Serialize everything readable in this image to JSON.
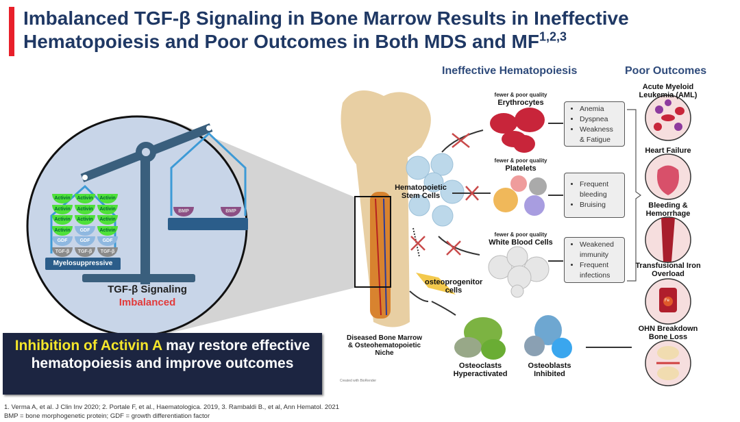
{
  "title": {
    "line1": "Imbalanced TGF-β Signaling in Bone Marrow Results in Ineffective",
    "line2": "Hematopoiesis and Poor Outcomes in Both MDS and MF",
    "superscript": "1,2,3"
  },
  "headings": {
    "hematopoiesis": "Ineffective Hematopoiesis",
    "outcomes": "Poor Outcomes"
  },
  "scale": {
    "left_stack": [
      [
        "Activin",
        "Activin",
        "Activin"
      ],
      [
        "Activin",
        "Activin",
        "Activin"
      ],
      [
        "Activin",
        "Activin",
        "Activin"
      ],
      [
        "Activin",
        "GDF",
        "Activin"
      ],
      [
        "GDF",
        "GDF",
        "GDF"
      ],
      [
        "TGF-β",
        "TGF-β",
        "TGF-β"
      ]
    ],
    "right_items": [
      "BMP",
      "BMP"
    ],
    "pan_label": "Myelosuppressive",
    "caption": "TGF-β Signaling",
    "status": "Imbalanced"
  },
  "colors": {
    "accent_red": "#e8202a",
    "title_navy": "#1f3864",
    "activin_green": "#4fe03a",
    "gdf_blue": "#8fb8e0",
    "tgf_gray": "#8a8a8a",
    "bmp_purple": "#8c4f84"
  },
  "niche": {
    "stem_cells": "Hematopoietic Stem Cells",
    "osteoprogenitor": "osteoprogenitor cells",
    "bone_label": "Diseased Bone Marrow & Osteohematopoietic Niche",
    "credit": "Created with BioRender"
  },
  "cells": [
    {
      "qualifier": "fewer & poor quality",
      "name": "Erythrocytes",
      "effects": [
        "Anemia",
        "Dyspnea",
        "Weakness",
        "& Fatigue"
      ]
    },
    {
      "qualifier": "fewer & poor quality",
      "name": "Platelets",
      "effects": [
        "Frequent",
        "bleeding",
        "Bruising"
      ]
    },
    {
      "qualifier": "fewer & poor quality",
      "name": "White Blood Cells",
      "effects": [
        "Weakened",
        "immunity",
        "Frequent",
        "infections"
      ]
    }
  ],
  "bone_cells": {
    "osteoclasts": "Osteoclasts Hyperactivated",
    "osteoblasts": "Osteoblasts Inhibited"
  },
  "outcomes": [
    {
      "label": "Acute Myeloid Leukemia (AML)",
      "icon": "aml-cells-icon"
    },
    {
      "label": "Heart Failure",
      "icon": "heart-icon"
    },
    {
      "label": "Bleeding & Hemorrhage",
      "icon": "blood-vessel-icon"
    },
    {
      "label": "Transfusional Iron Overload",
      "icon": "blood-bag-icon",
      "badge": "Fe"
    },
    {
      "label": "OHN Breakdown Bone Loss",
      "icon": "joint-icon"
    }
  ],
  "callout": {
    "highlight": "Inhibition of Activin A",
    "rest": " may restore effective hematopoiesis and improve outcomes"
  },
  "footnotes": {
    "refs": "1. Verma A, et al. J Clin Inv 2020;  2. Portale F, et al., Haematologica. 2019,  3. Rambaldi B., et al, Ann Hematol. 2021",
    "abbrev": "BMP = bone morphogenetic protein; GDF = growth differentiation factor"
  }
}
